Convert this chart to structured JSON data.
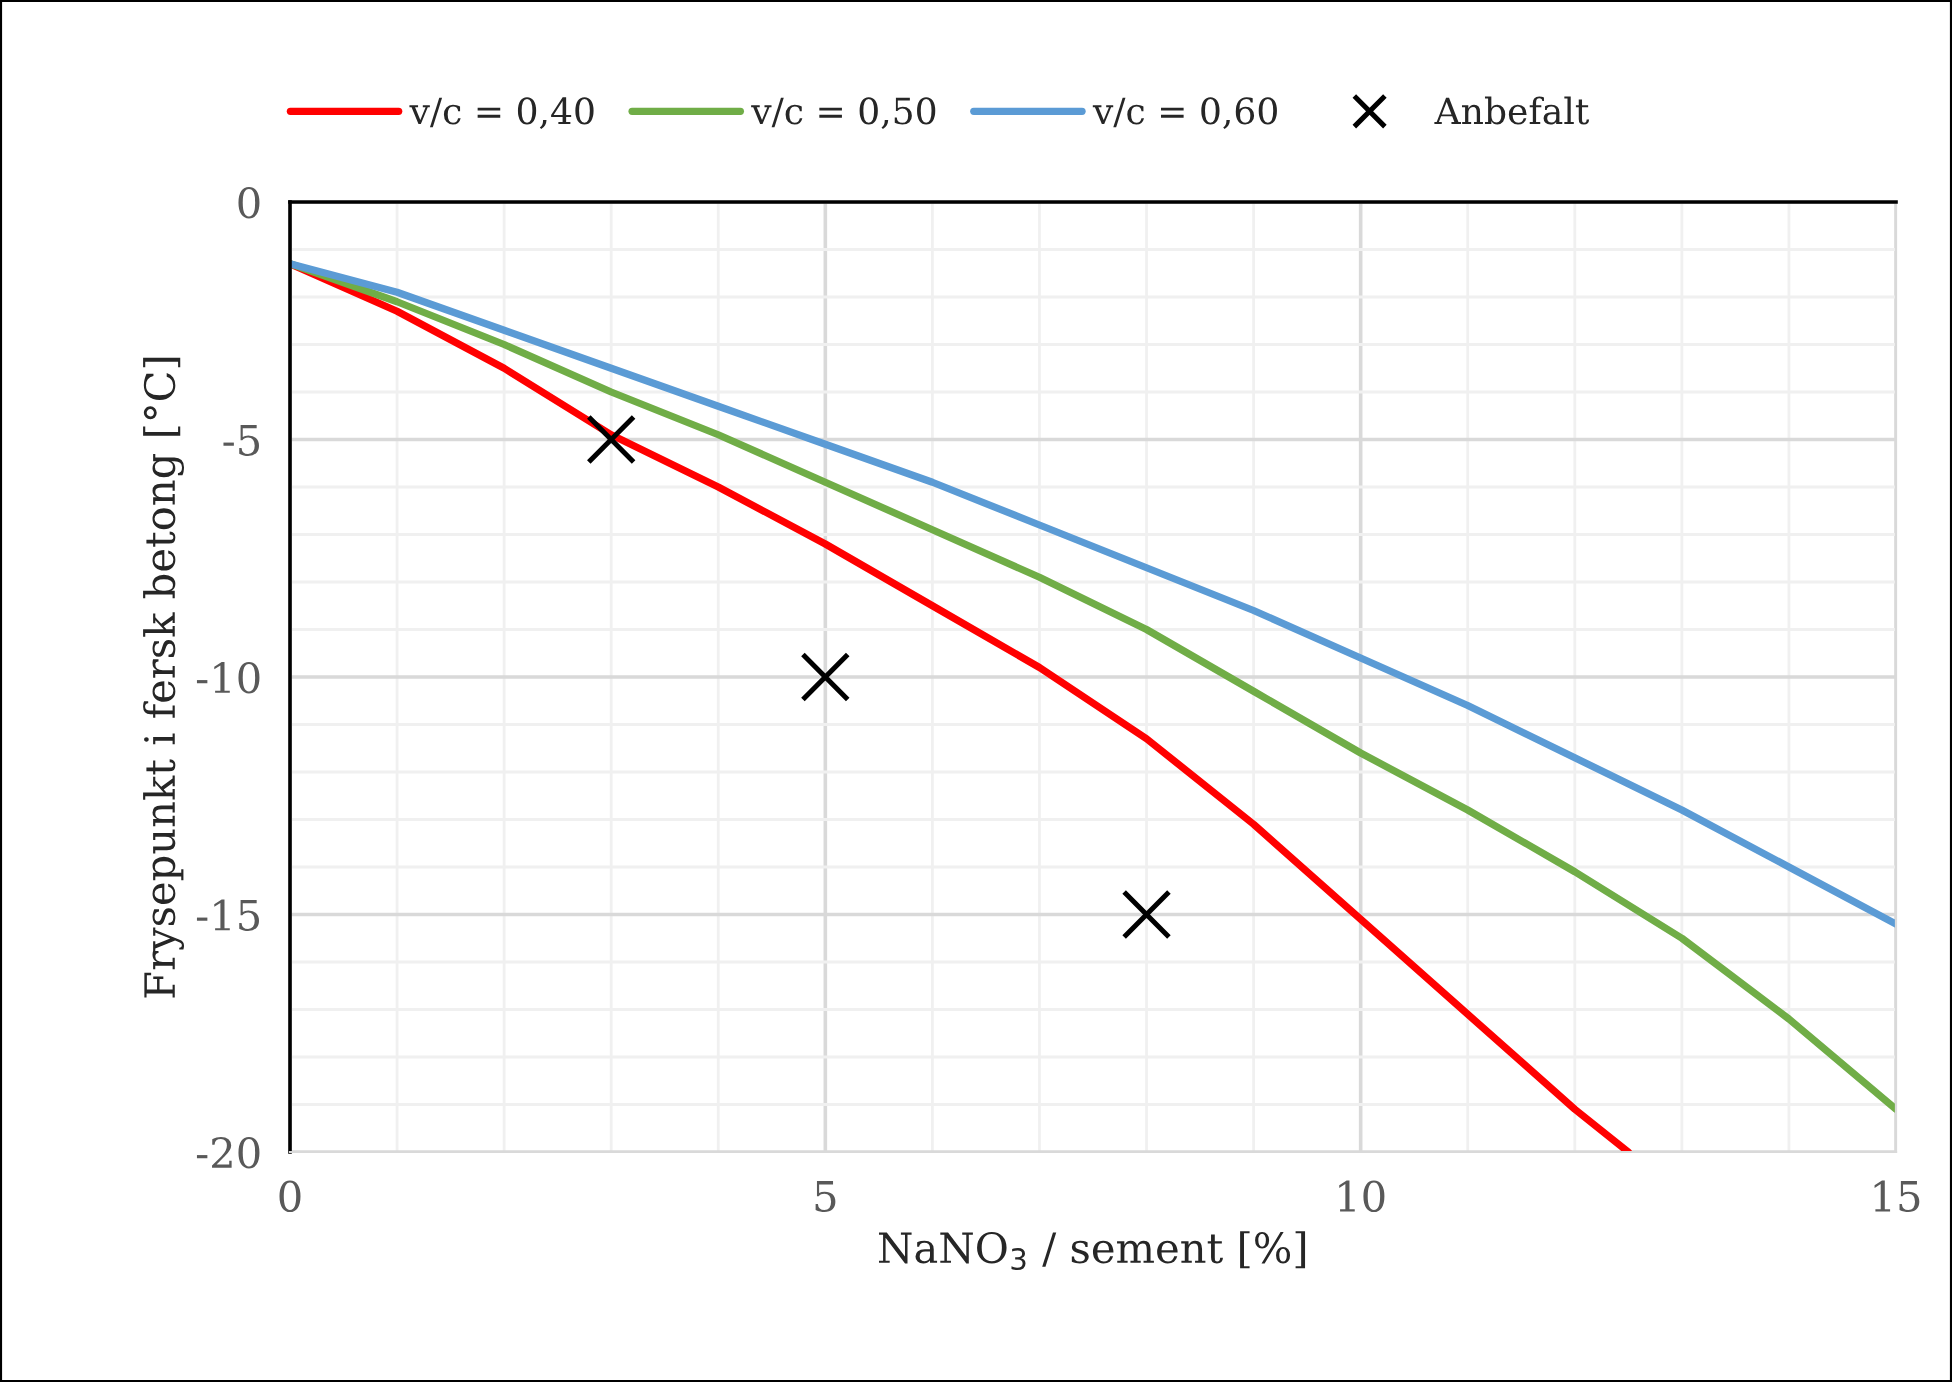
{
  "chart_data": {
    "type": "line",
    "xlabel": "NaNO$_{3}$ / sement [%]",
    "ylabel": "Frysepunkt i fersk betong [°C]",
    "xlim": [
      0,
      15
    ],
    "ylim": [
      -20,
      0
    ],
    "xticks": [
      0,
      5,
      10,
      15
    ],
    "yticks": [
      -20,
      -15,
      -10,
      -5,
      0
    ],
    "grid": true,
    "legend": "top",
    "line_style": "solid",
    "series": [
      {
        "name": "v/c = 0,40",
        "color": "#ff0000",
        "marker": "none",
        "x": [
          0,
          1,
          2,
          3,
          4,
          5,
          6,
          7,
          8,
          9,
          10,
          11,
          12,
          12.5
        ],
        "values": [
          -1.3,
          -2.3,
          -3.5,
          -4.9,
          -6.0,
          -7.2,
          -8.5,
          -9.8,
          -11.3,
          -13.1,
          -15.1,
          -17.1,
          -19.1,
          -20
        ]
      },
      {
        "name": "v/c = 0,50",
        "color": "#70ad47",
        "marker": "none",
        "x": [
          0,
          1,
          2,
          3,
          4,
          5,
          6,
          7,
          8,
          9,
          10,
          11,
          12,
          13,
          14,
          15
        ],
        "values": [
          -1.3,
          -2.1,
          -3.0,
          -4.0,
          -4.9,
          -5.9,
          -6.9,
          -7.9,
          -9.0,
          -10.3,
          -11.6,
          -12.8,
          -14.1,
          -15.5,
          -17.2,
          -19.1
        ]
      },
      {
        "name": "v/c = 0,60",
        "color": "#5b9bd5",
        "marker": "none",
        "x": [
          0,
          1,
          2,
          3,
          4,
          5,
          6,
          7,
          8,
          9,
          10,
          11,
          12,
          13,
          14,
          15
        ],
        "values": [
          -1.3,
          -1.9,
          -2.7,
          -3.5,
          -4.3,
          -5.1,
          -5.9,
          -6.8,
          -7.7,
          -8.6,
          -9.6,
          -10.6,
          -11.7,
          -12.8,
          -14.0,
          -15.2
        ]
      },
      {
        "name": "Anbefalt",
        "color": "#000000",
        "type": "scatter",
        "marker": "cross",
        "x": [
          3,
          5,
          8
        ],
        "values": [
          -5,
          -10,
          -15
        ]
      }
    ]
  }
}
